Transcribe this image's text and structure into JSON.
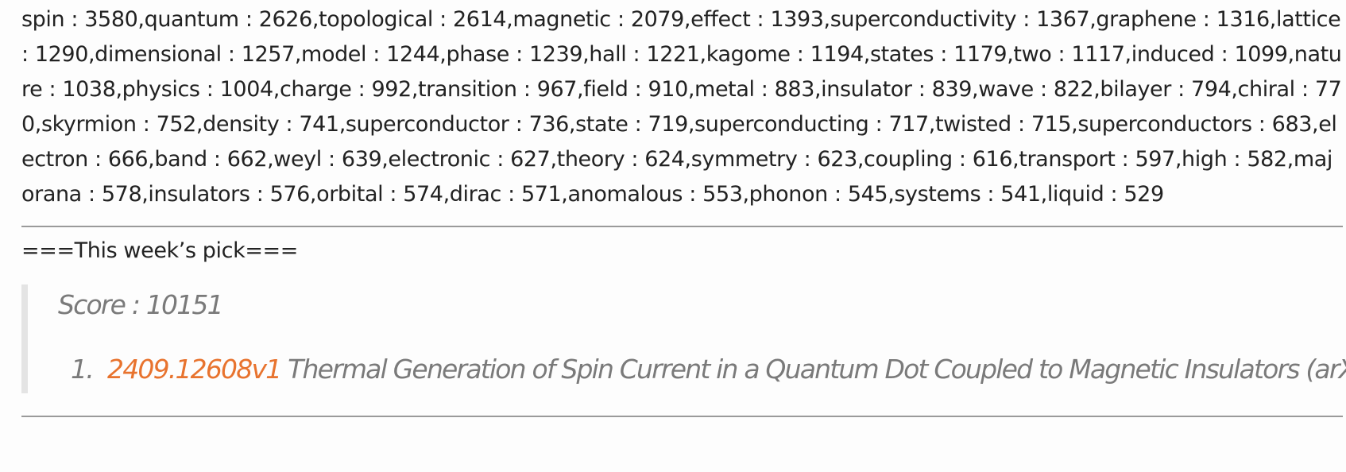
{
  "keyword_counts": "spin : 3580,quantum : 2626,topological : 2614,magnetic : 2079,effect : 1393,superconductivity : 1367,graphene : 1316,lattice : 1290,dimensional : 1257,model : 1244,phase : 1239,hall : 1221,kagome : 1194,states : 1179,two : 1117,induced : 1099,nature : 1038,physics : 1004,charge : 992,transition : 967,field : 910,metal : 883,insulator : 839,wave : 822,bilayer : 794,chiral : 770,skyrmion : 752,density : 741,superconductor : 736,state : 719,superconducting : 717,twisted : 715,superconductors : 683,electron : 666,band : 662,weyl : 639,electronic : 627,theory : 624,symmetry : 623,coupling : 616,transport : 597,high : 582,majorana : 578,insulators : 576,orbital : 574,dirac : 571,anomalous : 553,phonon : 545,systems : 541,liquid : 529",
  "pick": {
    "heading": "===This week’s pick===",
    "score": "Score : 10151",
    "papers": [
      {
        "number": "1.",
        "id": "2409.12608v1",
        "title": "Thermal Generation of Spin Current in a Quantum Dot Coupled to Magnetic Insulators (arXiv)"
      }
    ]
  },
  "colors": {
    "link": "#e8732e",
    "quote_text": "#7a7a7a",
    "quote_bar": "#e4e4e4",
    "rule": "#9a9a9a"
  }
}
